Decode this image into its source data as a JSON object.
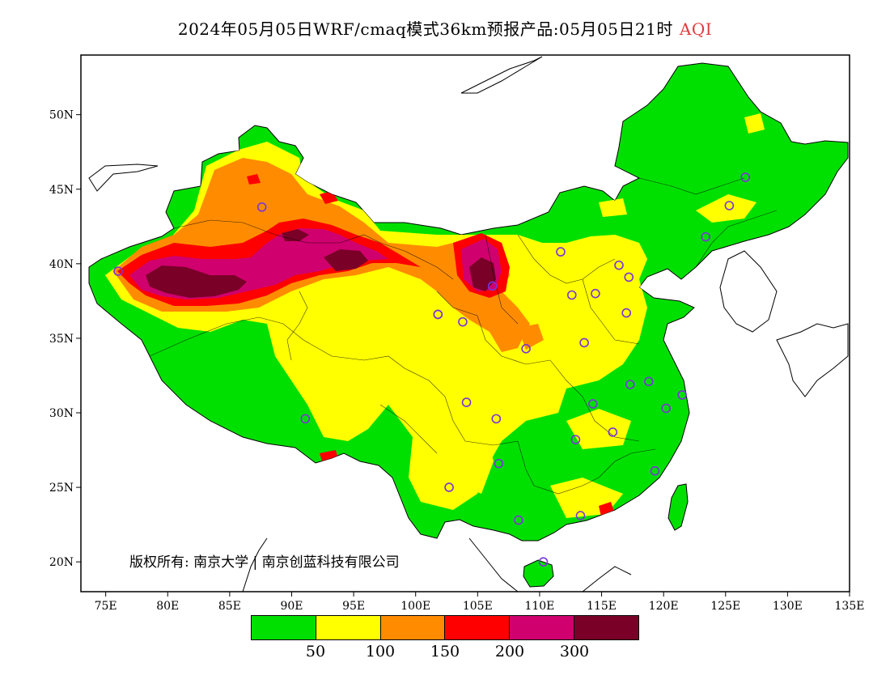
{
  "title": {
    "main": "2024年05月05日WRF/cmaq模式36km预报产品:05月05日21时",
    "variable": "AQI"
  },
  "map": {
    "lon_range": [
      73,
      135
    ],
    "lat_range": [
      18,
      54
    ],
    "lon_ticks": [
      "75E",
      "80E",
      "85E",
      "90E",
      "95E",
      "100E",
      "105E",
      "110E",
      "115E",
      "120E",
      "125E",
      "130E",
      "135E"
    ],
    "lat_ticks": [
      "50N",
      "45N",
      "40N",
      "35N",
      "30N",
      "25N",
      "20N"
    ],
    "colors": {
      "good": "#00e000",
      "moderate": "#ffff00",
      "usg": "#ff8c00",
      "unhealthy": "#ff0000",
      "very_unhealthy": "#d0006e",
      "hazardous": "#7a0028",
      "station": "#7a35d8",
      "frame": "#000000"
    }
  },
  "copyright": "版权所有: 南京大学 | 南京创蓝科技有限公司",
  "legend": {
    "colors": [
      "#00e000",
      "#ffff00",
      "#ff8c00",
      "#ff0000",
      "#d0006e",
      "#7a0028"
    ],
    "labels": [
      "50",
      "100",
      "150",
      "200",
      "300"
    ]
  }
}
